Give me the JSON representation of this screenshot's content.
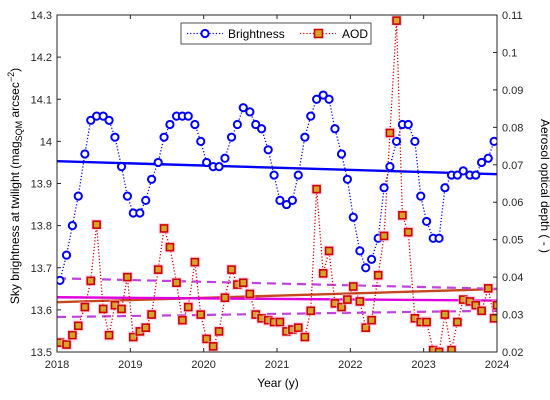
{
  "chart_data": {
    "type": "line",
    "xlabel": "Year (y)",
    "ylabel_left": {
      "main": "Sky brightness at twilight (mag",
      "sub": "SQM",
      "mid": " arcsec",
      "sup": "−2",
      "end": ")"
    },
    "ylabel_right": "Aerosol optical depth ( - )",
    "xlim": [
      2018,
      2024
    ],
    "ylim_left": [
      13.5,
      14.3
    ],
    "ylim_right": [
      0.02,
      0.11
    ],
    "xticks": [
      "2018",
      "2019",
      "2020",
      "2021",
      "2022",
      "2023",
      "2024"
    ],
    "yticks_left": [
      "13.5",
      "13.6",
      "13.7",
      "13.8",
      "13.9",
      "14",
      "14.1",
      "14.2",
      "14.3"
    ],
    "yticks_right": [
      "0.02",
      "0.03",
      "0.04",
      "0.05",
      "0.06",
      "0.07",
      "0.08",
      "0.09",
      "0.1",
      "0.11"
    ],
    "grid": false,
    "legend_position": "top-center",
    "series": [
      {
        "name": "Brightness",
        "axis": "left",
        "color": "#0000FF",
        "marker": "circle",
        "line": "dotted",
        "x": [
          2018.04,
          2018.13,
          2018.21,
          2018.29,
          2018.38,
          2018.46,
          2018.54,
          2018.63,
          2018.71,
          2018.79,
          2018.88,
          2018.96,
          2019.04,
          2019.13,
          2019.21,
          2019.29,
          2019.38,
          2019.46,
          2019.54,
          2019.63,
          2019.71,
          2019.79,
          2019.88,
          2019.96,
          2020.04,
          2020.13,
          2020.21,
          2020.29,
          2020.38,
          2020.46,
          2020.54,
          2020.63,
          2020.71,
          2020.79,
          2020.88,
          2020.96,
          2021.04,
          2021.13,
          2021.21,
          2021.29,
          2021.38,
          2021.46,
          2021.54,
          2021.63,
          2021.71,
          2021.79,
          2021.88,
          2021.96,
          2022.04,
          2022.13,
          2022.21,
          2022.29,
          2022.38,
          2022.46,
          2022.54,
          2022.63,
          2022.71,
          2022.79,
          2022.88,
          2022.96,
          2023.04,
          2023.13,
          2023.21,
          2023.29,
          2023.38,
          2023.46,
          2023.54,
          2023.63,
          2023.71,
          2023.79,
          2023.88,
          2023.96
        ],
        "y": [
          13.67,
          13.73,
          13.8,
          13.87,
          13.97,
          14.05,
          14.06,
          14.06,
          14.05,
          14.01,
          13.94,
          13.87,
          13.83,
          13.83,
          13.86,
          13.91,
          13.95,
          14.01,
          14.04,
          14.06,
          14.06,
          14.06,
          14.04,
          14.0,
          13.95,
          13.94,
          13.94,
          13.96,
          14.01,
          14.04,
          14.08,
          14.07,
          14.04,
          14.03,
          13.98,
          13.92,
          13.86,
          13.85,
          13.86,
          13.92,
          14.01,
          14.06,
          14.1,
          14.11,
          14.1,
          14.03,
          13.97,
          13.91,
          13.82,
          13.74,
          13.7,
          13.72,
          13.77,
          13.89,
          13.94,
          14.0,
          14.04,
          14.04,
          14.0,
          13.87,
          13.81,
          13.77,
          13.77,
          13.89,
          13.92,
          13.92,
          13.93,
          13.92,
          13.92,
          13.95,
          13.96,
          14.0
        ]
      },
      {
        "name": "AOD",
        "axis": "right",
        "color": "#D00000",
        "marker": "square",
        "line": "dotted",
        "x": [
          2018.04,
          2018.13,
          2018.21,
          2018.29,
          2018.38,
          2018.46,
          2018.54,
          2018.63,
          2018.71,
          2018.79,
          2018.88,
          2018.96,
          2019.04,
          2019.13,
          2019.21,
          2019.29,
          2019.38,
          2019.46,
          2019.54,
          2019.63,
          2019.71,
          2019.79,
          2019.88,
          2019.96,
          2020.04,
          2020.13,
          2020.21,
          2020.29,
          2020.38,
          2020.46,
          2020.54,
          2020.63,
          2020.71,
          2020.79,
          2020.88,
          2020.96,
          2021.04,
          2021.13,
          2021.21,
          2021.29,
          2021.38,
          2021.46,
          2021.54,
          2021.63,
          2021.71,
          2021.79,
          2021.88,
          2021.96,
          2022.04,
          2022.13,
          2022.21,
          2022.29,
          2022.38,
          2022.46,
          2022.54,
          2022.63,
          2022.71,
          2022.79,
          2022.88,
          2022.96,
          2023.04,
          2023.13,
          2023.21,
          2023.29,
          2023.38,
          2023.46,
          2023.54,
          2023.63,
          2023.71,
          2023.79,
          2023.88,
          2023.96,
          2024.0
        ],
        "y": [
          0.0225,
          0.022,
          0.0245,
          0.027,
          0.032,
          0.039,
          0.054,
          0.0315,
          0.0245,
          0.0325,
          0.0315,
          0.04,
          0.024,
          0.0255,
          0.0265,
          0.03,
          0.042,
          0.053,
          0.048,
          0.0385,
          0.0285,
          0.032,
          0.044,
          0.03,
          0.0235,
          0.0215,
          0.0255,
          0.0345,
          0.042,
          0.038,
          0.0385,
          0.0355,
          0.03,
          0.029,
          0.0285,
          0.028,
          0.028,
          0.0255,
          0.026,
          0.0265,
          0.024,
          0.031,
          0.0635,
          0.041,
          0.047,
          0.033,
          0.032,
          0.034,
          0.0375,
          0.0335,
          0.0265,
          0.0285,
          0.0405,
          0.051,
          0.0785,
          0.1085,
          0.0565,
          0.052,
          0.029,
          0.028,
          0.028,
          0.0205,
          0.02,
          0.03,
          0.0205,
          0.028,
          0.034,
          0.0335,
          0.0325,
          0.031,
          0.037,
          0.029,
          0.0325
        ]
      }
    ],
    "trend_lines": [
      {
        "of": "Brightness",
        "axis": "left",
        "style": "solid",
        "color": "#0000FF",
        "x": [
          2018,
          2024
        ],
        "y": [
          13.953,
          13.922
        ]
      },
      {
        "of": "AOD",
        "axis": "right",
        "style": "solid",
        "color": "#C8461E",
        "x": [
          2018,
          2024
        ],
        "y": [
          0.0333,
          0.0368
        ]
      },
      {
        "of": "Brightness",
        "axis": "left",
        "style": "solid",
        "color": "#E000E0",
        "x": [
          2018,
          2024
        ],
        "y": [
          13.63,
          13.622
        ]
      },
      {
        "of": "Brightness",
        "axis": "left",
        "style": "dashed",
        "color": "#C040E0",
        "x": [
          2018,
          2024
        ],
        "y": [
          13.675,
          13.65
        ]
      },
      {
        "of": "Brightness",
        "axis": "left",
        "style": "dashed",
        "color": "#C040E0",
        "x": [
          2018,
          2024
        ],
        "y": [
          13.583,
          13.598
        ]
      }
    ]
  }
}
